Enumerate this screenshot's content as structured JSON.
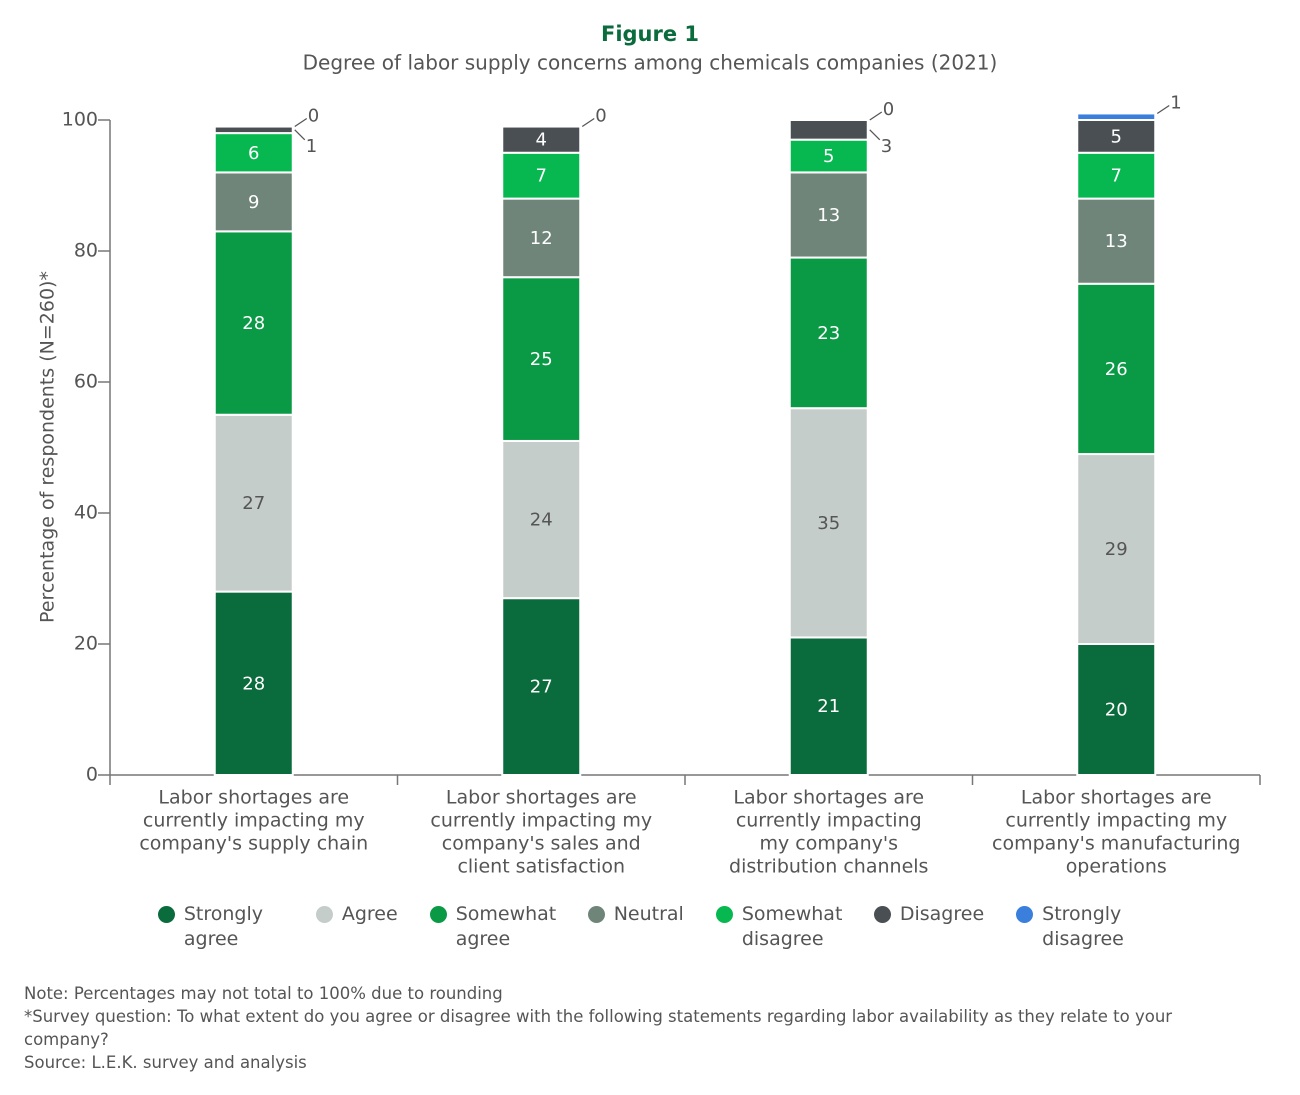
{
  "chart_data": {
    "type": "stacked_bar",
    "title": "Figure 1",
    "subtitle": "Degree of labor supply concerns among chemicals companies (2021)",
    "y_label": "Percentage of respondents (N=260)*",
    "categories": [
      [
        "Labor shortages are",
        "currently impacting my",
        "company's supply chain"
      ],
      [
        "Labor shortages are",
        "currently impacting my",
        "company's sales and",
        "client satisfaction"
      ],
      [
        "Labor shortages are",
        "currently impacting",
        "my company's",
        "distribution channels"
      ],
      [
        "Labor shortages are",
        "currently impacting my",
        "company's manufacturing",
        "operations"
      ]
    ],
    "series": [
      {
        "name": "Strongly agree",
        "color": "#0a6b3c",
        "values": [
          28,
          27,
          21,
          20
        ]
      },
      {
        "name": "Agree",
        "color": "#c5cdca",
        "values": [
          27,
          24,
          35,
          29
        ]
      },
      {
        "name": "Somewhat agree",
        "color": "#0a9a45",
        "values": [
          28,
          25,
          23,
          26
        ]
      },
      {
        "name": "Neutral",
        "color": "#6f8579",
        "values": [
          9,
          12,
          13,
          13
        ]
      },
      {
        "name": "Somewhat disagree",
        "color": "#07b851",
        "values": [
          6,
          7,
          5,
          7
        ]
      },
      {
        "name": "Disagree",
        "color": "#4a4f54",
        "values": [
          1,
          4,
          3,
          5
        ]
      },
      {
        "name": "Strongly disagree",
        "color": "#3a7fdc",
        "values": [
          0,
          0,
          0,
          1
        ]
      }
    ],
    "ylim": [
      0,
      100
    ],
    "yticks": [
      0,
      20,
      40,
      60,
      80,
      100
    ],
    "notes": [
      "Note: Percentages may not total to 100% due to rounding",
      "*Survey question: To what extent do you agree or disagree with the following statements regarding labor availability as they relate to your company?",
      "Source: L.E.K. survey and analysis"
    ]
  }
}
